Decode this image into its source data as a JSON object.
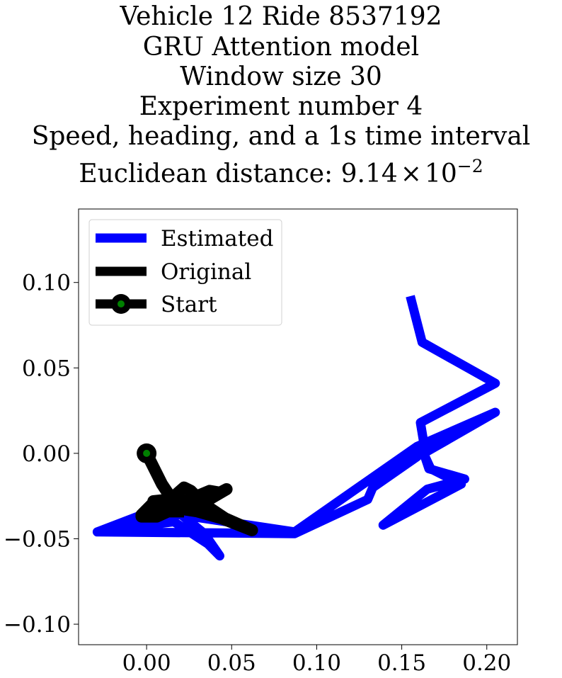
{
  "chart_data": {
    "type": "line",
    "title_lines": [
      "Vehicle 12 Ride 8537192",
      "GRU Attention model",
      "Window size 30",
      "Experiment number 4",
      "Speed, heading, and a 1s time interval"
    ],
    "title_distance": {
      "prefix": "Euclidean distance: ",
      "mantissa": "9.14",
      "times": "×",
      "base": "10",
      "exponent": "−2"
    },
    "xlabel": "",
    "ylabel": "",
    "xlim": [
      -0.04,
      0.218
    ],
    "ylim": [
      -0.112,
      0.143
    ],
    "xticks": [
      0.0,
      0.05,
      0.1,
      0.15,
      0.2
    ],
    "xtick_labels": [
      "0.00",
      "0.05",
      "0.10",
      "0.15",
      "0.20"
    ],
    "yticks": [
      -0.1,
      -0.05,
      0.0,
      0.05,
      0.1
    ],
    "ytick_labels": [
      "−0.10",
      "−0.05",
      "0.00",
      "0.05",
      "0.10"
    ],
    "grid": false,
    "legend_position": "top-left",
    "series": [
      {
        "name": "Estimated",
        "color": "#0000ff",
        "x": [
          0.155,
          0.162,
          0.205,
          0.161,
          0.163,
          0.159,
          0.133,
          0.13,
          0.087,
          -0.029,
          0.013,
          0.034,
          0.043,
          0.036,
          0.016,
          -0.029,
          0.013,
          0.087,
          0.159,
          0.205,
          0.163,
          0.166,
          0.187,
          0.165,
          0.139,
          0.185,
          0.167,
          0.161
        ],
        "y": [
          0.092,
          0.065,
          0.041,
          0.018,
          0.006,
          -0.002,
          -0.02,
          -0.027,
          -0.047,
          -0.046,
          -0.03,
          -0.047,
          -0.06,
          -0.053,
          -0.04,
          -0.046,
          -0.035,
          -0.046,
          0.004,
          0.024,
          0.0,
          -0.009,
          -0.015,
          -0.021,
          -0.042,
          -0.018,
          -0.009,
          0.004
        ]
      },
      {
        "name": "Original",
        "color": "#000000",
        "x": [
          0.0,
          0.009,
          0.015,
          0.003,
          -0.003,
          0.005,
          0.015,
          0.025,
          0.037,
          0.043,
          0.047,
          0.035,
          0.025,
          0.019,
          0.009,
          0.001,
          -0.003,
          0.006,
          0.017,
          0.03,
          0.044,
          0.062,
          0.046,
          0.034,
          0.026,
          0.022,
          0.014,
          0.004,
          0.003,
          0.012,
          0.022
        ],
        "y": [
          0.0,
          -0.018,
          -0.027,
          -0.03,
          -0.036,
          -0.035,
          -0.032,
          -0.027,
          -0.022,
          -0.023,
          -0.021,
          -0.028,
          -0.031,
          -0.028,
          -0.034,
          -0.032,
          -0.037,
          -0.037,
          -0.032,
          -0.034,
          -0.038,
          -0.045,
          -0.038,
          -0.03,
          -0.022,
          -0.02,
          -0.027,
          -0.028,
          -0.033,
          -0.034,
          -0.034
        ]
      }
    ],
    "start": {
      "name": "Start",
      "x": 0.0,
      "y": 0.0,
      "edge_color": "#000000",
      "face_color": "#008000"
    }
  }
}
